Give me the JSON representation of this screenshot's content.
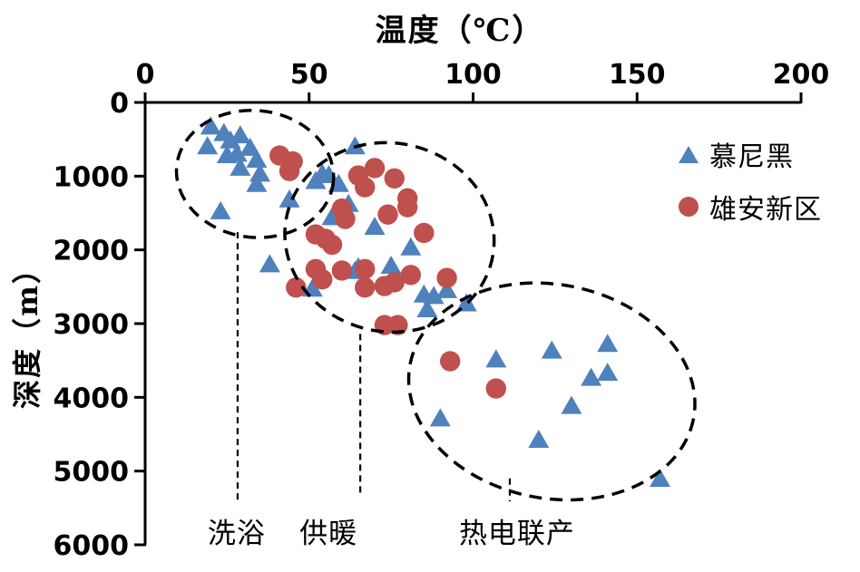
{
  "chart_data": {
    "type": "scatter",
    "title": "温度（℃）",
    "xlabel": "温度（℃）",
    "ylabel": "深度（m）",
    "x_axis": {
      "min": 0,
      "max": 200,
      "ticks": [
        0,
        50,
        100,
        150,
        200
      ],
      "position": "top"
    },
    "y_axis": {
      "min": 0,
      "max": 6000,
      "ticks": [
        0,
        1000,
        2000,
        3000,
        4000,
        5000,
        6000
      ],
      "inverted": true
    },
    "grid": false,
    "legend_position": "top-right",
    "series": [
      {
        "name": "慕尼黑",
        "marker": "triangle",
        "color": "#4f81bd",
        "points": [
          [
            20,
            330
          ],
          [
            19,
            600
          ],
          [
            24,
            420
          ],
          [
            26,
            520
          ],
          [
            29,
            450
          ],
          [
            28,
            700
          ],
          [
            25,
            720
          ],
          [
            32,
            620
          ],
          [
            34,
            780
          ],
          [
            29,
            890
          ],
          [
            35,
            970
          ],
          [
            34,
            1110
          ],
          [
            23,
            1480
          ],
          [
            44,
            1320
          ],
          [
            52,
            1070
          ],
          [
            54,
            970
          ],
          [
            56,
            990
          ],
          [
            59,
            1110
          ],
          [
            64,
            600
          ],
          [
            62,
            1380
          ],
          [
            57,
            1560
          ],
          [
            70,
            1690
          ],
          [
            81,
            1970
          ],
          [
            75,
            2220
          ],
          [
            65,
            2240
          ],
          [
            64,
            2290
          ],
          [
            51,
            2530
          ],
          [
            38,
            2200
          ],
          [
            85,
            2610
          ],
          [
            88,
            2630
          ],
          [
            92,
            2550
          ],
          [
            86,
            2810
          ],
          [
            98,
            2730
          ],
          [
            107,
            3490
          ],
          [
            124,
            3370
          ],
          [
            141,
            3280
          ],
          [
            136,
            3740
          ],
          [
            141,
            3670
          ],
          [
            130,
            4120
          ],
          [
            90,
            4290
          ],
          [
            120,
            4580
          ],
          [
            157,
            5110
          ]
        ]
      },
      {
        "name": "雄安新区",
        "marker": "circle",
        "color": "#c0504d",
        "points": [
          [
            41,
            720
          ],
          [
            45,
            800
          ],
          [
            44,
            930
          ],
          [
            65,
            990
          ],
          [
            67,
            1150
          ],
          [
            70,
            890
          ],
          [
            76,
            1030
          ],
          [
            80,
            1300
          ],
          [
            80,
            1420
          ],
          [
            74,
            1520
          ],
          [
            60,
            1440
          ],
          [
            61,
            1580
          ],
          [
            52,
            1790
          ],
          [
            55,
            1850
          ],
          [
            57,
            1930
          ],
          [
            85,
            1770
          ],
          [
            46,
            2510
          ],
          [
            52,
            2260
          ],
          [
            54,
            2400
          ],
          [
            60,
            2280
          ],
          [
            67,
            2260
          ],
          [
            67,
            2510
          ],
          [
            73,
            2490
          ],
          [
            76,
            2440
          ],
          [
            81,
            2340
          ],
          [
            92,
            2380
          ],
          [
            73,
            3020
          ],
          [
            77,
            3020
          ],
          [
            93,
            3510
          ],
          [
            107,
            3880
          ]
        ]
      }
    ],
    "annotations": {
      "ellipses": [
        {
          "label": "洗浴",
          "t_center": 33.5,
          "d_center": 970,
          "t_radius": 24,
          "d_radius": 860,
          "rotate_deg": 6
        },
        {
          "label": "供暖",
          "t_center": 74.5,
          "d_center": 1830,
          "t_radius": 32,
          "d_radius": 1280,
          "rotate_deg": 10
        },
        {
          "label": "热电联产",
          "t_center": 124,
          "d_center": 3920,
          "t_radius": 44,
          "d_radius": 1450,
          "rotate_deg": 11
        }
      ],
      "guide_lines": [
        {
          "t": 28.2,
          "d_from": 1760,
          "d_to": 5400
        },
        {
          "t": 65.6,
          "d_from": 3140,
          "d_to": 5350
        },
        {
          "t": 111.2,
          "d_from": 5100,
          "d_to": 5410
        }
      ],
      "labels": [
        {
          "text": "洗浴",
          "t": 27.9,
          "d": 5840
        },
        {
          "text": "供暖",
          "t": 55.9,
          "d": 5840
        },
        {
          "text": "热电联产",
          "t": 113.4,
          "d": 5840
        }
      ]
    }
  }
}
